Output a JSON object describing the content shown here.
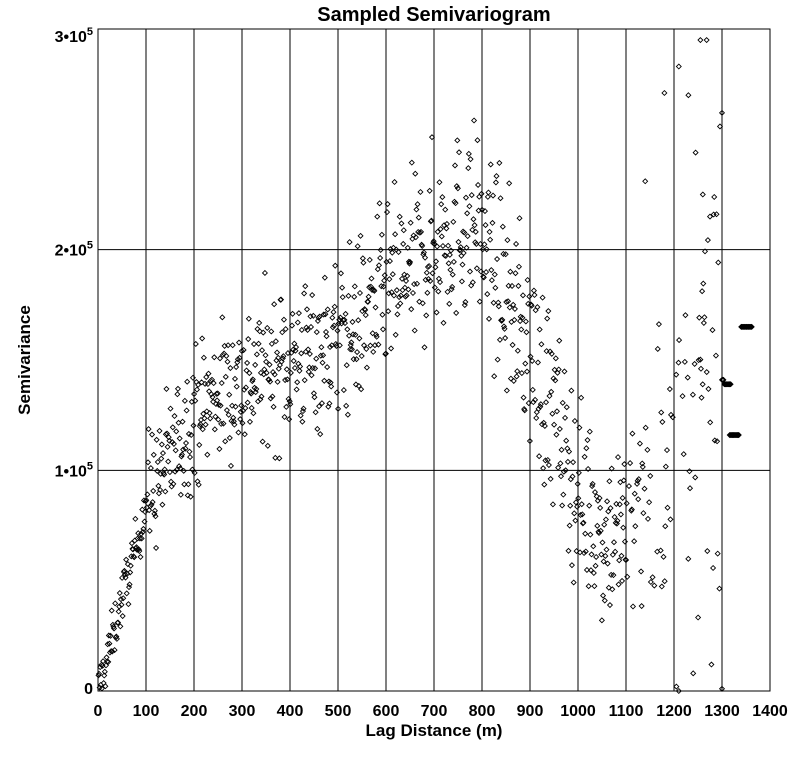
{
  "chart_data": {
    "type": "scatter",
    "title": "Sampled Semivariogram",
    "xlabel": "Lag Distance (m)",
    "ylabel": "Semivariance",
    "xlim": [
      0,
      1400
    ],
    "ylim": [
      0,
      300000
    ],
    "x_ticks": [
      0,
      100,
      200,
      300,
      400,
      500,
      600,
      700,
      800,
      900,
      1000,
      1100,
      1200,
      1300,
      1400
    ],
    "x_tick_labels": [
      "0",
      "100",
      "200",
      "300",
      "400",
      "500",
      "600",
      "700",
      "800",
      "900",
      "1000",
      "1100",
      "1200",
      "1300",
      "1400"
    ],
    "y_ticks": [
      0,
      100000,
      200000,
      300000
    ],
    "y_tick_labels": [
      {
        "base": "0",
        "exp": ""
      },
      {
        "base": "1•10",
        "exp": "5"
      },
      {
        "base": "2•10",
        "exp": "5"
      },
      {
        "base": "3•10",
        "exp": "5"
      }
    ],
    "grid": true,
    "marker": "open-diamond",
    "marker_color": "#000000",
    "trend_points": [
      [
        0,
        0
      ],
      [
        20,
        15000
      ],
      [
        50,
        42000
      ],
      [
        80,
        66000
      ],
      [
        100,
        86000
      ],
      [
        150,
        106000
      ],
      [
        200,
        125000
      ],
      [
        250,
        135000
      ],
      [
        300,
        140000
      ],
      [
        350,
        146000
      ],
      [
        400,
        150000
      ],
      [
        450,
        153000
      ],
      [
        500,
        158000
      ],
      [
        550,
        168000
      ],
      [
        600,
        180000
      ],
      [
        650,
        190000
      ],
      [
        700,
        202000
      ],
      [
        750,
        210000
      ],
      [
        780,
        214000
      ],
      [
        800,
        205000
      ],
      [
        850,
        180000
      ],
      [
        900,
        155000
      ],
      [
        950,
        125000
      ],
      [
        1000,
        90000
      ],
      [
        1050,
        72000
      ],
      [
        1100,
        72000
      ],
      [
        1150,
        85000
      ],
      [
        1200,
        110000
      ],
      [
        1250,
        140000
      ],
      [
        1300,
        150000
      ],
      [
        1340,
        150000
      ]
    ],
    "clusters": [
      {
        "x_from": 1300,
        "x_to": 1303,
        "y": 141000,
        "count": 6
      },
      {
        "x_from": 1305,
        "x_to": 1318,
        "y": 139000,
        "count": 9
      },
      {
        "x_from": 1316,
        "x_to": 1335,
        "y": 116000,
        "count": 12
      },
      {
        "x_from": 1340,
        "x_to": 1362,
        "y": 165000,
        "count": 16
      }
    ],
    "outliers": [
      [
        1210,
        283000
      ],
      [
        1230,
        270000
      ],
      [
        1255,
        295000
      ],
      [
        1268,
        295000
      ],
      [
        1300,
        262000
      ],
      [
        1260,
        225000
      ],
      [
        1245,
        244000
      ],
      [
        1275,
        215000
      ],
      [
        1180,
        271000
      ],
      [
        1140,
        231000
      ],
      [
        1205,
        2000
      ],
      [
        1300,
        1000
      ],
      [
        1210,
        0
      ],
      [
        1278,
        12000
      ],
      [
        1240,
        8000
      ]
    ]
  }
}
